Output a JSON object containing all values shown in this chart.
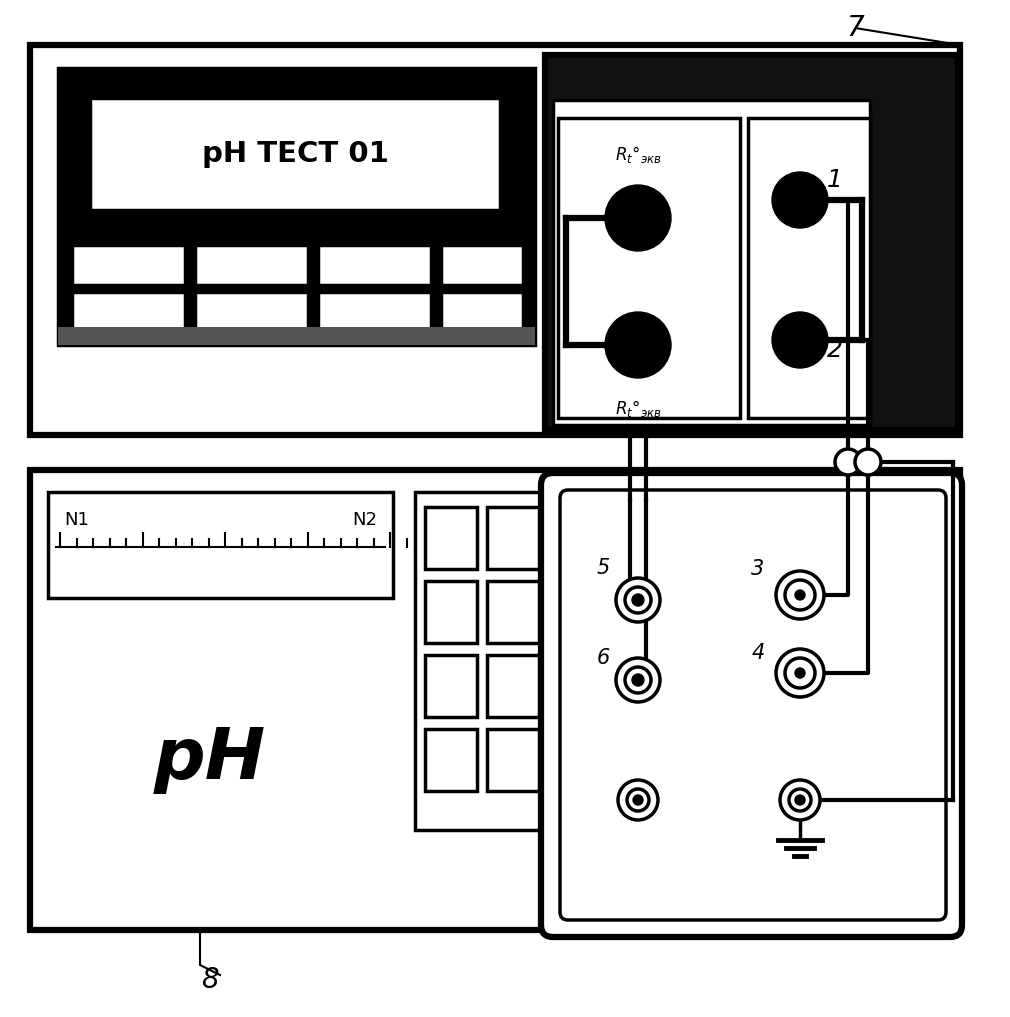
{
  "bg_color": "#ffffff",
  "fig_width": 10.1,
  "fig_height": 10.17,
  "device7_label": "7",
  "device8_label": "8",
  "label1": "1",
  "label2": "2",
  "label3": "3",
  "label4": "4",
  "label5": "5",
  "label6": "6",
  "ph_label": "pH",
  "ph_test_label": "pH ТЕСТ 01",
  "n1_label": "N1",
  "n2_label": "N2",
  "rt_text": "R$_{t}$°$_{экв}$"
}
